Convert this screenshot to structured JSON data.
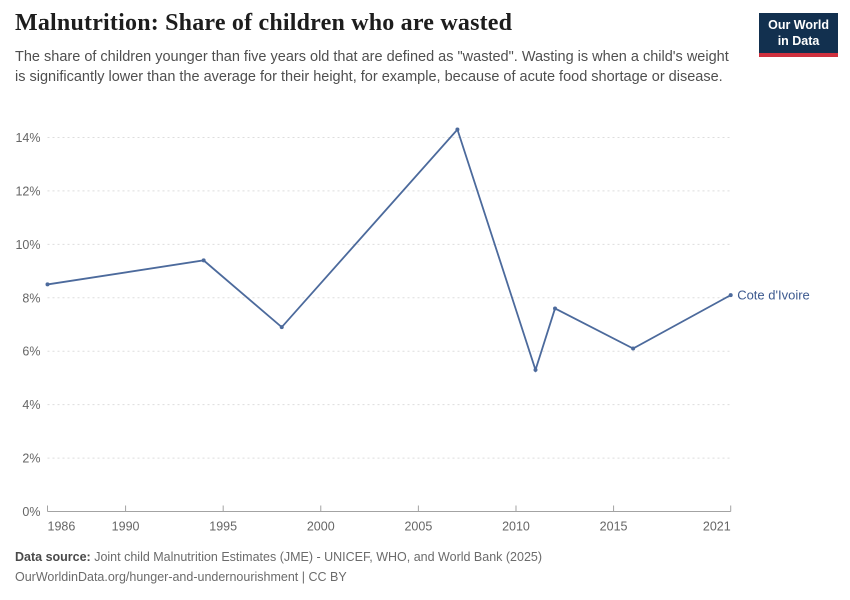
{
  "header": {
    "title": "Malnutrition: Share of children who are wasted",
    "subtitle": "The share of children younger than five years old that are defined as \"wasted\". Wasting is when a child's weight is significantly lower than the average for their height, for example, because of acute food shortage or disease.",
    "logo": {
      "line1": "Our World",
      "line2": "in Data",
      "bg_color": "#12304f",
      "accent_color": "#cf303e"
    }
  },
  "chart_data": {
    "type": "line",
    "series": [
      {
        "name": "Cote d'Ivoire",
        "x": [
          1986,
          1994,
          1998,
          2007,
          2011,
          2012,
          2016,
          2021
        ],
        "values": [
          8.5,
          9.4,
          6.9,
          14.3,
          5.3,
          7.6,
          6.1,
          8.1
        ]
      }
    ],
    "title": "Malnutrition: Share of children who are wasted",
    "xlabel": "",
    "ylabel": "",
    "xlim": [
      1986,
      2021
    ],
    "ylim": [
      0,
      14
    ],
    "xticks": [
      1986,
      1990,
      1995,
      2000,
      2005,
      2010,
      2015,
      2021
    ],
    "yticks": [
      0,
      2,
      4,
      6,
      8,
      10,
      12,
      14
    ],
    "ytick_suffix": "%",
    "grid": true,
    "legend_position": "end-of-line",
    "line_color": "#4c6a9c",
    "point_color": "#4c6a9c",
    "series_label_color": "#3d5a8f",
    "grid_color": "#dddddd",
    "axis_color": "#a3a3a3"
  },
  "footer": {
    "source_label": "Data source:",
    "source_text": " Joint child Malnutrition Estimates (JME) - UNICEF, WHO, and World Bank (2025)",
    "link_text": "OurWorldinData.org/hunger-and-undernourishment | CC BY"
  }
}
